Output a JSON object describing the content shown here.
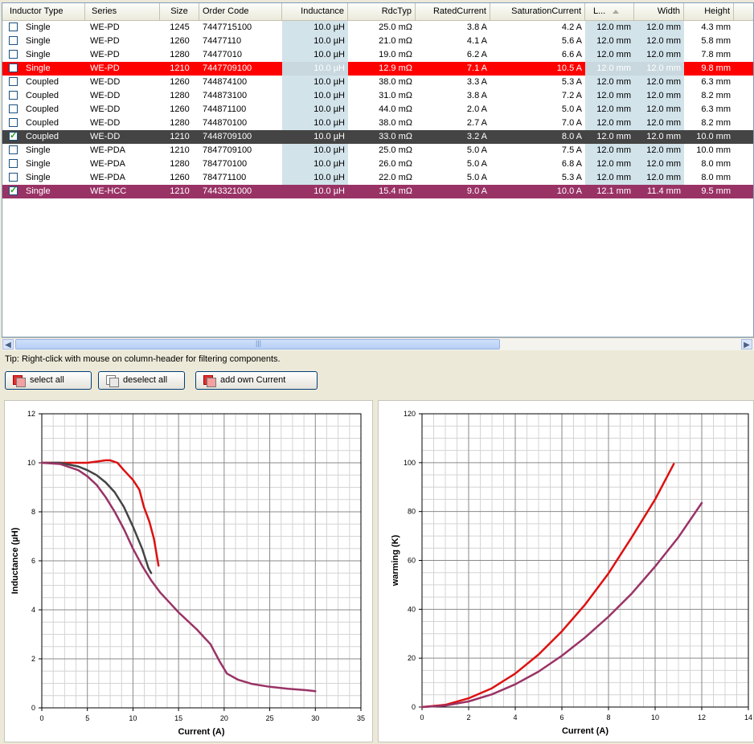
{
  "columns": [
    "Inductor Type",
    "Series",
    "Size",
    "Order Code",
    "Inductance",
    "RdcTyp",
    "RatedCurrent",
    "SaturationCurrent",
    "L...",
    "Width",
    "Height",
    ""
  ],
  "rows": [
    {
      "checked": false,
      "highlight": "",
      "cells": [
        "Single",
        "WE-PD",
        "1245",
        "7447715100",
        "10.0 µH",
        "25.0 mΩ",
        "3.8 A",
        "4.2 A",
        "12.0 mm",
        "12.0 mm",
        "4.3 mm"
      ]
    },
    {
      "checked": false,
      "highlight": "",
      "cells": [
        "Single",
        "WE-PD",
        "1260",
        "74477110",
        "10.0 µH",
        "21.0 mΩ",
        "4.1 A",
        "5.6 A",
        "12.0 mm",
        "12.0 mm",
        "5.8 mm"
      ]
    },
    {
      "checked": false,
      "highlight": "",
      "cells": [
        "Single",
        "WE-PD",
        "1280",
        "74477010",
        "10.0 µH",
        "19.0 mΩ",
        "6.2 A",
        "6.6 A",
        "12.0 mm",
        "12.0 mm",
        "7.8 mm"
      ]
    },
    {
      "checked": false,
      "highlight": "#ff0000",
      "cells": [
        "Single",
        "WE-PD",
        "1210",
        "7447709100",
        "10.0 µH",
        "12.9 mΩ",
        "7.1 A",
        "10.5 A",
        "12.0 mm",
        "12.0 mm",
        "9.8 mm"
      ]
    },
    {
      "checked": false,
      "highlight": "",
      "cells": [
        "Coupled",
        "WE-DD",
        "1260",
        "744874100",
        "10.0 µH",
        "38.0 mΩ",
        "3.3 A",
        "5.3 A",
        "12.0 mm",
        "12.0 mm",
        "6.3 mm"
      ]
    },
    {
      "checked": false,
      "highlight": "",
      "cells": [
        "Coupled",
        "WE-DD",
        "1280",
        "744873100",
        "10.0 µH",
        "31.0 mΩ",
        "3.8 A",
        "7.2 A",
        "12.0 mm",
        "12.0 mm",
        "8.2 mm"
      ]
    },
    {
      "checked": false,
      "highlight": "",
      "cells": [
        "Coupled",
        "WE-DD",
        "1260",
        "744871100",
        "10.0 µH",
        "44.0 mΩ",
        "2.0 A",
        "5.0 A",
        "12.0 mm",
        "12.0 mm",
        "6.3 mm"
      ]
    },
    {
      "checked": false,
      "highlight": "",
      "cells": [
        "Coupled",
        "WE-DD",
        "1280",
        "744870100",
        "10.0 µH",
        "38.0 mΩ",
        "2.7 A",
        "7.0 A",
        "12.0 mm",
        "12.0 mm",
        "8.2 mm"
      ]
    },
    {
      "checked": true,
      "highlight": "#444444",
      "cells": [
        "Coupled",
        "WE-DD",
        "1210",
        "7448709100",
        "10.0 µH",
        "33.0 mΩ",
        "3.2 A",
        "8.0 A",
        "12.0 mm",
        "12.0 mm",
        "10.0 mm"
      ]
    },
    {
      "checked": false,
      "highlight": "",
      "cells": [
        "Single",
        "WE-PDA",
        "1210",
        "7847709100",
        "10.0 µH",
        "25.0 mΩ",
        "5.0 A",
        "7.5 A",
        "12.0 mm",
        "12.0 mm",
        "10.0 mm"
      ]
    },
    {
      "checked": false,
      "highlight": "",
      "cells": [
        "Single",
        "WE-PDA",
        "1280",
        "784770100",
        "10.0 µH",
        "26.0 mΩ",
        "5.0 A",
        "6.8 A",
        "12.0 mm",
        "12.0 mm",
        "8.0 mm"
      ]
    },
    {
      "checked": false,
      "highlight": "",
      "cells": [
        "Single",
        "WE-PDA",
        "1260",
        "784771100",
        "10.0 µH",
        "22.0 mΩ",
        "5.0 A",
        "5.3 A",
        "12.0 mm",
        "12.0 mm",
        "8.0 mm"
      ]
    },
    {
      "checked": true,
      "highlight": "#993366",
      "cells": [
        "Single",
        "WE-HCC",
        "1210",
        "7443321000",
        "10.0 µH",
        "15.4 mΩ",
        "9.0 A",
        "10.0 A",
        "12.1 mm",
        "11.4 mm",
        "9.5 mm"
      ]
    }
  ],
  "tip": "Tip: Right-click with mouse on column-header for filtering components.",
  "buttons": {
    "select_all": "select all",
    "deselect_all": "deselect all",
    "add_own_current": "add own Current"
  },
  "scroll_thumb_glyph": "|||",
  "chart_data": [
    {
      "type": "line",
      "xlabel": "Current (A)",
      "ylabel": "Inductance (µH)",
      "xlim": [
        0,
        35
      ],
      "ylim": [
        0,
        12
      ],
      "xticks": [
        0,
        5,
        10,
        15,
        20,
        25,
        30,
        35
      ],
      "yticks": [
        0,
        2,
        4,
        6,
        8,
        10,
        12
      ],
      "grid": true,
      "series": [
        {
          "color": "#dd1111",
          "points": [
            [
              0,
              10
            ],
            [
              3,
              10
            ],
            [
              5,
              10
            ],
            [
              6,
              10.05
            ],
            [
              7,
              10.1
            ],
            [
              7.5,
              10.1
            ],
            [
              8.3,
              10.0
            ],
            [
              9,
              9.7
            ],
            [
              10,
              9.3
            ],
            [
              10.7,
              8.9
            ],
            [
              11.2,
              8.2
            ],
            [
              11.8,
              7.6
            ],
            [
              12.3,
              6.9
            ],
            [
              12.8,
              5.8
            ]
          ]
        },
        {
          "color": "#444444",
          "points": [
            [
              0,
              10
            ],
            [
              2,
              10
            ],
            [
              4,
              9.85
            ],
            [
              5,
              9.7
            ],
            [
              6,
              9.5
            ],
            [
              7,
              9.2
            ],
            [
              8,
              8.8
            ],
            [
              9,
              8.2
            ],
            [
              10,
              7.4
            ],
            [
              11,
              6.5
            ],
            [
              11.7,
              5.7
            ],
            [
              12,
              5.5
            ]
          ]
        },
        {
          "color": "#993366",
          "points": [
            [
              0,
              10
            ],
            [
              2,
              9.95
            ],
            [
              4,
              9.7
            ],
            [
              5,
              9.45
            ],
            [
              6,
              9.1
            ],
            [
              7,
              8.6
            ],
            [
              8,
              8.0
            ],
            [
              9,
              7.3
            ],
            [
              10,
              6.5
            ],
            [
              11,
              5.8
            ],
            [
              12,
              5.2
            ],
            [
              13,
              4.7
            ],
            [
              14,
              4.3
            ],
            [
              15,
              3.9
            ],
            [
              17,
              3.2
            ],
            [
              18.5,
              2.6
            ],
            [
              19.5,
              1.9
            ],
            [
              20.3,
              1.4
            ],
            [
              21.5,
              1.15
            ],
            [
              23,
              0.98
            ],
            [
              25,
              0.86
            ],
            [
              27,
              0.78
            ],
            [
              29,
              0.72
            ],
            [
              30,
              0.68
            ]
          ]
        }
      ]
    },
    {
      "type": "line",
      "xlabel": "Current (A)",
      "ylabel": "warming (K)",
      "xlim": [
        0,
        14
      ],
      "ylim": [
        0,
        120
      ],
      "xticks": [
        0,
        2,
        4,
        6,
        8,
        10,
        12,
        14
      ],
      "yticks": [
        0,
        20,
        40,
        60,
        80,
        100,
        120
      ],
      "grid": true,
      "series": [
        {
          "color": "#dd1111",
          "points": [
            [
              0,
              0
            ],
            [
              1,
              0.9
            ],
            [
              2,
              3.6
            ],
            [
              3,
              7.7
            ],
            [
              4,
              13.7
            ],
            [
              5,
              21.5
            ],
            [
              6,
              31
            ],
            [
              7,
              42
            ],
            [
              8,
              54.7
            ],
            [
              9,
              69.5
            ],
            [
              10,
              85
            ],
            [
              10.8,
              99.5
            ]
          ]
        },
        {
          "color": "#993366",
          "points": [
            [
              0,
              0
            ],
            [
              1,
              0.6
            ],
            [
              2,
              2.3
            ],
            [
              3,
              5.2
            ],
            [
              4,
              9.3
            ],
            [
              5,
              14.5
            ],
            [
              6,
              21
            ],
            [
              7,
              28.5
            ],
            [
              8,
              37
            ],
            [
              9,
              46.5
            ],
            [
              10,
              57.5
            ],
            [
              11,
              69.5
            ],
            [
              12,
              83.5
            ]
          ]
        }
      ]
    }
  ]
}
